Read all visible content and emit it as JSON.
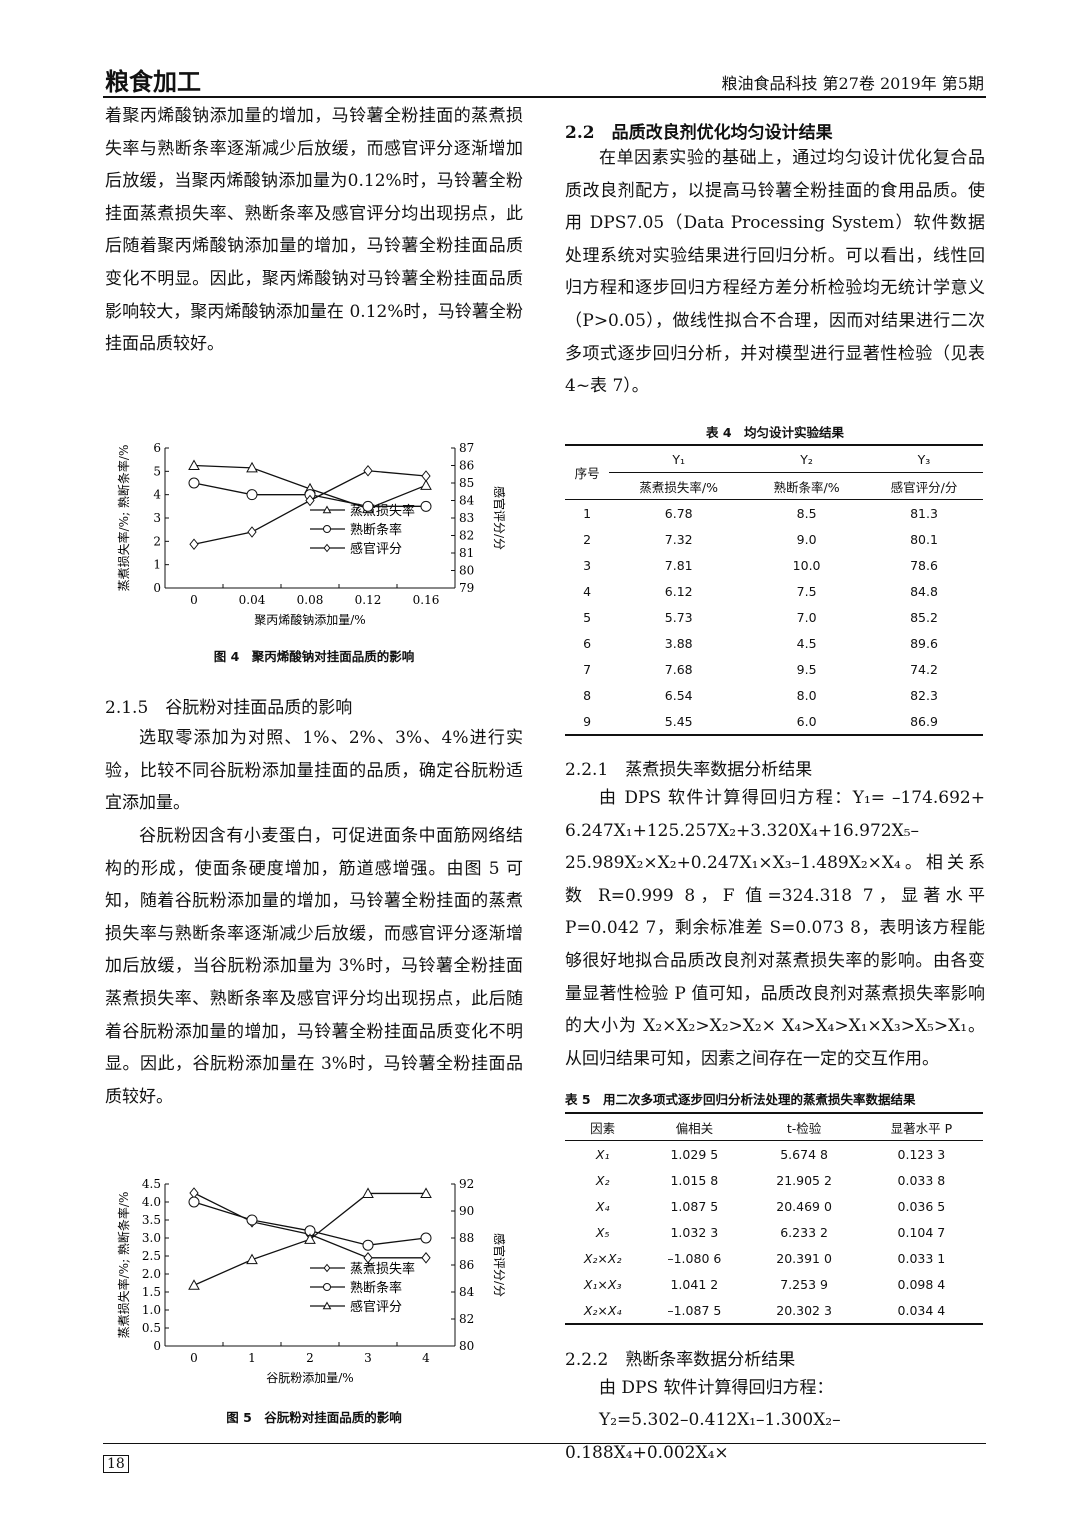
{
  "header": {
    "section": "粮食加工",
    "journal": "粮油食品科技 第27卷 2019年 第5期"
  },
  "left": {
    "p1": "着聚丙烯酸钠添加量的增加，马铃薯全粉挂面的蒸煮损失率与熟断条率逐渐减少后放缓，而感官评分逐渐增加后放缓，当聚丙烯酸钠添加量为0.12%时，马铃薯全粉挂面蒸煮损失率、熟断条率及感官评分均出现拐点，此后随着聚丙烯酸钠添加量的增加，马铃薯全粉挂面品质变化不明显。因此，聚丙烯酸钠对马铃薯全粉挂面品质影响较大，聚丙烯酸钠添加量在 0.12%时，马铃薯全粉挂面品质较好。",
    "fig4_caption": "图 4　聚丙烯酸钠对挂面品质的影响",
    "h215": "2.1.5　谷朊粉对挂面品质的影响",
    "p2": "选取零添加为对照、1%、2%、3%、4%进行实验，比较不同谷朊粉添加量挂面的品质，确定谷朊粉适宜添加量。",
    "p3": "谷朊粉因含有小麦蛋白，可促进面条中面筋网络结构的形成，使面条硬度增加，筋道感增强。由图 5 可知，随着谷朊粉添加量的增加，马铃薯全粉挂面的蒸煮损失率与熟断条率逐渐减少后放缓，而感官评分逐渐增加后放缓，当谷朊粉添加量为 3%时，马铃薯全粉挂面蒸煮损失率、熟断条率及感官评分均出现拐点，此后随着谷朊粉添加量的增加，马铃薯全粉挂面品质变化不明显。因此，谷朊粉添加量在 3%时，马铃薯全粉挂面品质较好。",
    "fig5_caption": "图 5　谷朊粉对挂面品质的影响"
  },
  "right": {
    "h22": "2.2　品质改良剂优化均匀设计结果",
    "p1": "在单因素实验的基础上，通过均匀设计优化复合品质改良剂配方，以提高马铃薯全粉挂面的食用品质。使用 DPS7.05（Data Processing System）软件数据处理系统对实验结果进行回归分析。可以看出，线性回归方程和逐步回归方程经方差分析检验均无统计学意义（P>0.05），做线性拟合不合理，因而对结果进行二次多项式逐步回归分析，并对模型进行显著性检验（见表 4~表 7）。",
    "table4_title": "表 4　均匀设计实验结果",
    "h221": "2.2.1　蒸煮损失率数据分析结果",
    "p2": "由 DPS 软件计算得回归方程：Y₁= –174.692+ 6.247X₁+125.257X₂+3.320X₄+16.972X₅–25.989X₂×X₂+0.247X₁×X₃–1.489X₂×X₄。相关系数 R=0.999 8，F 值=324.318 7，显著水平 P=0.042 7，剩余标准差 S=0.073 8，表明该方程能够很好地拟合品质改良剂对蒸煮损失率的影响。由各变量显著性检验 P 值可知，品质改良剂对蒸煮损失率影响的大小为 X₂×X₂>X₂>X₂× X₄>X₄>X₁×X₃>X₅>X₁。从回归结果可知，因素之间存在一定的交互作用。",
    "table5_title": "表 5　用二次多项式逐步回归分析法处理的蒸煮损失率数据结果",
    "h222": "2.2.2　熟断条率数据分析结果",
    "p3": "由 DPS 软件计算得回归方程：",
    "p4": "Y₂=5.302–0.412X₁–1.300X₂–0.188X₄+0.002X₄×"
  },
  "table4": {
    "h_no": "序号",
    "h_y1": "Y₁",
    "h_y2": "Y₂",
    "h_y3": "Y₃",
    "s_y1": "蒸煮损失率/%",
    "s_y2": "熟断条率/%",
    "s_y3": "感官评分/分",
    "rows": [
      [
        "1",
        "6.78",
        "8.5",
        "81.3"
      ],
      [
        "2",
        "7.32",
        "9.0",
        "80.1"
      ],
      [
        "3",
        "7.81",
        "10.0",
        "78.6"
      ],
      [
        "4",
        "6.12",
        "7.5",
        "84.8"
      ],
      [
        "5",
        "5.73",
        "7.0",
        "85.2"
      ],
      [
        "6",
        "3.88",
        "4.5",
        "89.6"
      ],
      [
        "7",
        "7.68",
        "9.5",
        "74.2"
      ],
      [
        "8",
        "6.54",
        "8.0",
        "82.3"
      ],
      [
        "9",
        "5.45",
        "6.0",
        "86.9"
      ]
    ]
  },
  "table5": {
    "headers": [
      "因素",
      "偏相关",
      "t-检验",
      "显著水平 P"
    ],
    "rows": [
      [
        "X₁",
        "1.029 5",
        "5.674 8",
        "0.123 3"
      ],
      [
        "X₂",
        "1.015 8",
        "21.905 2",
        "0.033 8"
      ],
      [
        "X₄",
        "1.087 5",
        "20.469 0",
        "0.036 5"
      ],
      [
        "X₅",
        "1.032 3",
        "6.233 2",
        "0.104 7"
      ],
      [
        "X₂×X₂",
        "–1.080 6",
        "20.391 0",
        "0.033 1"
      ],
      [
        "X₁×X₃",
        "1.041 2",
        "7.253 9",
        "0.098 4"
      ],
      [
        "X₂×X₄",
        "–1.087 5",
        "20.302 3",
        "0.034 4"
      ]
    ]
  },
  "footer": {
    "page": "18"
  },
  "chart_data": [
    {
      "type": "line",
      "xlabel": "聚丙烯酸钠添加量/%",
      "ylabel": "蒸煮损失率/%; 熟断条率/%",
      "y2label": "感官评分/分",
      "x": [
        0,
        0.04,
        0.08,
        0.12,
        0.16
      ],
      "x_ticks": [
        "0",
        "0.04",
        "0.08",
        "0.12",
        "0.16"
      ],
      "ylim": [
        0,
        6
      ],
      "y_ticks": [
        "0",
        "1",
        "2",
        "3",
        "4",
        "5",
        "6"
      ],
      "y2lim": [
        79,
        87
      ],
      "y2_ticks": [
        "79",
        "80",
        "81",
        "82",
        "83",
        "84",
        "85",
        "86",
        "87"
      ],
      "legend": "center-right",
      "grid": false,
      "series": [
        {
          "name": "蒸煮损失率",
          "marker": "triangle",
          "axis": "left",
          "values": [
            5.25,
            5.15,
            4.25,
            3.4,
            4.4
          ]
        },
        {
          "name": "熟断条率",
          "marker": "circle",
          "axis": "left",
          "values": [
            4.5,
            4.0,
            4.0,
            3.5,
            3.5
          ]
        },
        {
          "name": "感官评分",
          "marker": "diamond",
          "axis": "right",
          "values": [
            81.5,
            82.2,
            84.0,
            85.7,
            85.4
          ]
        }
      ]
    },
    {
      "type": "line",
      "xlabel": "谷朊粉添加量/%",
      "ylabel": "蒸煮损失率/%; 熟断条率/%",
      "y2label": "感官评分/分",
      "x": [
        0,
        1,
        2,
        3,
        4
      ],
      "x_ticks": [
        "0",
        "1",
        "2",
        "3",
        "4"
      ],
      "ylim": [
        0,
        4.5
      ],
      "y_ticks": [
        "0",
        "0.5",
        "1.0",
        "1.5",
        "2.0",
        "2.5",
        "3.0",
        "3.5",
        "4.0",
        "4.5"
      ],
      "y2lim": [
        80,
        92
      ],
      "y2_ticks": [
        "80",
        "82",
        "84",
        "86",
        "88",
        "90",
        "92"
      ],
      "legend": "center-right",
      "grid": false,
      "series": [
        {
          "name": "蒸煮损失率",
          "marker": "diamond",
          "axis": "left",
          "values": [
            4.25,
            3.45,
            3.1,
            2.45,
            2.45
          ]
        },
        {
          "name": "熟断条率",
          "marker": "circle",
          "axis": "left",
          "values": [
            4.0,
            3.5,
            3.2,
            2.8,
            3.0
          ]
        },
        {
          "name": "感官评分",
          "marker": "triangle",
          "axis": "right",
          "values": [
            84.5,
            86.4,
            87.9,
            91.3,
            91.3
          ]
        }
      ]
    }
  ]
}
